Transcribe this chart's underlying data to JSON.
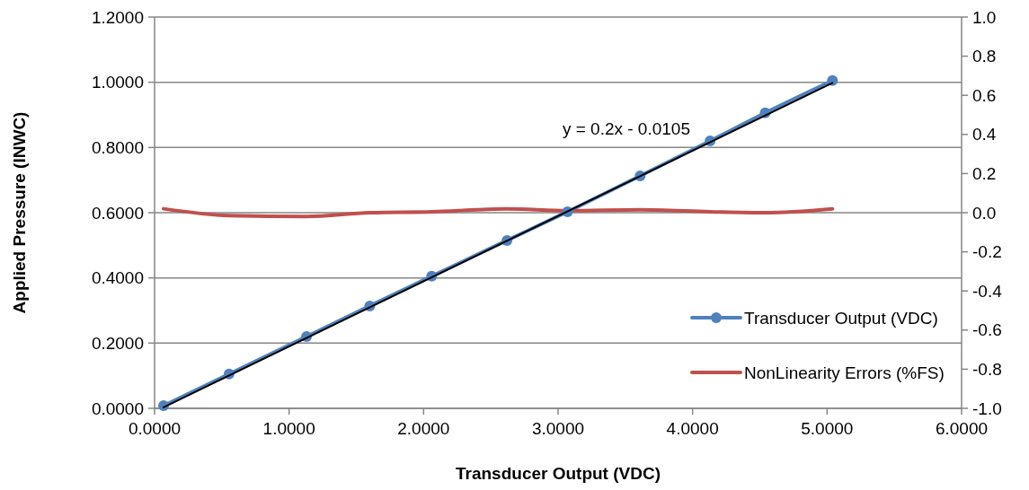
{
  "chart_data": {
    "type": "line",
    "xlabel": "Transducer Output (VDC)",
    "ylabel": "Applied Pressure (INWC)",
    "xlim": [
      0,
      6
    ],
    "xticks": [
      {
        "value": 0,
        "label": "0.0000"
      },
      {
        "value": 1,
        "label": "1.0000"
      },
      {
        "value": 2,
        "label": "2.0000"
      },
      {
        "value": 3,
        "label": "3.0000"
      },
      {
        "value": 4,
        "label": "4.0000"
      },
      {
        "value": 5,
        "label": "5.0000"
      },
      {
        "value": 6,
        "label": "6.0000"
      }
    ],
    "ylim": [
      0,
      1.2
    ],
    "yticks": [
      {
        "value": 0,
        "label": "0.0000"
      },
      {
        "value": 0.2,
        "label": "0.2000"
      },
      {
        "value": 0.4,
        "label": "0.4000"
      },
      {
        "value": 0.6,
        "label": "0.6000"
      },
      {
        "value": 0.8,
        "label": "0.8000"
      },
      {
        "value": 1,
        "label": "1.0000"
      },
      {
        "value": 1.2,
        "label": "1.2000"
      }
    ],
    "y2lim": [
      -1,
      1
    ],
    "y2ticks": [
      {
        "value": -1,
        "label": "-1.0"
      },
      {
        "value": -0.8,
        "label": "-0.8"
      },
      {
        "value": -0.6,
        "label": "-0.6"
      },
      {
        "value": -0.4,
        "label": "-0.4"
      },
      {
        "value": -0.2,
        "label": "-0.2"
      },
      {
        "value": 0,
        "label": "0.0"
      },
      {
        "value": 0.2,
        "label": "0.2"
      },
      {
        "value": 0.4,
        "label": "0.4"
      },
      {
        "value": 0.6,
        "label": "0.6"
      },
      {
        "value": 0.8,
        "label": "0.8"
      },
      {
        "value": 1,
        "label": "1.0"
      }
    ],
    "grid": "y",
    "legend": "bottom right",
    "series": [
      {
        "name": "Transducer Output (VDC)",
        "color": "#4f81bd",
        "marker": "circle",
        "x": [
          0.067,
          0.554,
          1.13,
          1.6,
          2.06,
          2.62,
          3.07,
          3.61,
          4.13,
          4.54,
          5.04
        ],
        "values": [
          0.008,
          0.105,
          0.22,
          0.314,
          0.405,
          0.515,
          0.603,
          0.713,
          0.82,
          0.906,
          1.005
        ]
      },
      {
        "name": "NonLinearity Errors (%FS)",
        "color": "#c0504d",
        "marker": "none",
        "axis": "y2",
        "x": [
          0.067,
          0.554,
          1.13,
          1.6,
          2.06,
          2.62,
          3.07,
          3.61,
          4.13,
          4.54,
          5.04
        ],
        "values": [
          0.02,
          -0.015,
          -0.02,
          0,
          0.005,
          0.02,
          0.01,
          0.015,
          0.005,
          0,
          0.02
        ]
      },
      {
        "color": "#000000",
        "marker": "none",
        "x": [
          0.067,
          5.04
        ],
        "values": [
          0.003,
          0.998
        ]
      }
    ],
    "annotations": [
      "y = 0.2x - 0.0105"
    ]
  }
}
